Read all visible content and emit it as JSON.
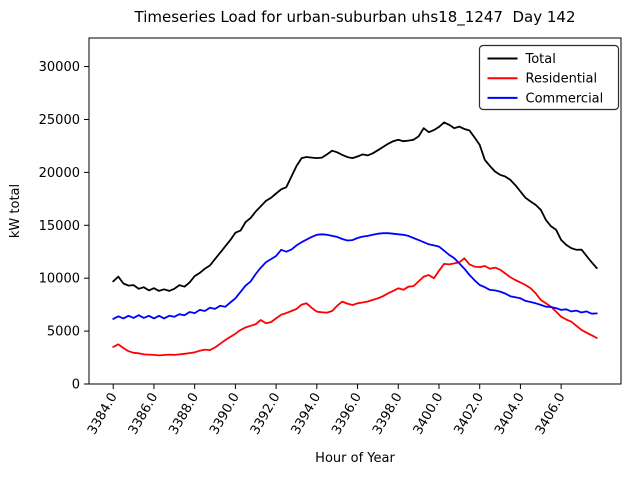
{
  "chart_data": {
    "type": "line",
    "title": "Timeseries Load for urban-suburban uhs18_1247  Day 142",
    "xlabel": "Hour of Year",
    "ylabel": "kW total",
    "xlim": [
      3382.81,
      3408.94
    ],
    "ylim": [
      0,
      32700
    ],
    "grid": false,
    "xticks": [
      3384,
      3386,
      3388,
      3390,
      3392,
      3394,
      3396,
      3398,
      3400,
      3402,
      3404,
      3406
    ],
    "xtick_labels": [
      "3384.0",
      "3386.0",
      "3388.0",
      "3390.0",
      "3392.0",
      "3394.0",
      "3396.0",
      "3398.0",
      "3400.0",
      "3402.0",
      "3404.0",
      "3406.0"
    ],
    "yticks": [
      0,
      5000,
      10000,
      15000,
      20000,
      25000,
      30000
    ],
    "ytick_labels": [
      "0",
      "5000",
      "10000",
      "15000",
      "20000",
      "25000",
      "30000"
    ],
    "x_start": 3384.0,
    "x_step": 0.25,
    "x_end": 3407.75,
    "n_points": 96,
    "legend": {
      "position": "upper right",
      "border_color": "#2b2b2b",
      "background": "#ffffff"
    },
    "series": [
      {
        "name": "Total",
        "color": "#000000",
        "values": [
          9700,
          10150,
          9500,
          9300,
          9350,
          9000,
          9150,
          8850,
          9050,
          8800,
          8950,
          8800,
          9000,
          9350,
          9200,
          9600,
          10200,
          10500,
          10900,
          11200,
          11800,
          12400,
          13000,
          13600,
          14300,
          14500,
          15300,
          15700,
          16300,
          16800,
          17300,
          17600,
          18000,
          18400,
          18600,
          19600,
          20600,
          21350,
          21450,
          21400,
          21350,
          21400,
          21700,
          22050,
          21900,
          21650,
          21440,
          21350,
          21500,
          21700,
          21600,
          21800,
          22100,
          22400,
          22700,
          22950,
          23080,
          22950,
          23000,
          23080,
          23400,
          24180,
          23800,
          24000,
          24300,
          24720,
          24500,
          24180,
          24330,
          24100,
          23960,
          23300,
          22600,
          21190,
          20600,
          20080,
          19770,
          19610,
          19300,
          18800,
          18200,
          17600,
          17250,
          16930,
          16460,
          15510,
          14900,
          14570,
          13620,
          13150,
          12840,
          12680,
          12700,
          12100,
          11500,
          10950
        ]
      },
      {
        "name": "Residential",
        "color": "#ff0000",
        "values": [
          3500,
          3750,
          3400,
          3100,
          2950,
          2900,
          2800,
          2780,
          2750,
          2700,
          2740,
          2780,
          2750,
          2800,
          2850,
          2920,
          3000,
          3150,
          3250,
          3200,
          3450,
          3800,
          4150,
          4450,
          4750,
          5100,
          5350,
          5500,
          5650,
          6050,
          5750,
          5850,
          6200,
          6550,
          6700,
          6900,
          7100,
          7500,
          7630,
          7200,
          6840,
          6780,
          6750,
          6900,
          7400,
          7790,
          7600,
          7470,
          7630,
          7700,
          7800,
          7950,
          8100,
          8300,
          8570,
          8800,
          9040,
          8900,
          9200,
          9250,
          9700,
          10150,
          10300,
          9990,
          10700,
          11350,
          11300,
          11400,
          11500,
          11880,
          11300,
          11100,
          11050,
          11150,
          10900,
          11000,
          10800,
          10450,
          10100,
          9830,
          9600,
          9360,
          9050,
          8570,
          7950,
          7630,
          7310,
          6840,
          6365,
          6100,
          5890,
          5500,
          5110,
          4850,
          4600,
          4350
        ]
      },
      {
        "name": "Commercial",
        "color": "#0000ff",
        "values": [
          6150,
          6400,
          6200,
          6450,
          6250,
          6500,
          6250,
          6450,
          6200,
          6450,
          6200,
          6450,
          6350,
          6600,
          6500,
          6800,
          6700,
          7000,
          6900,
          7200,
          7100,
          7400,
          7300,
          7700,
          8100,
          8700,
          9300,
          9700,
          10400,
          11000,
          11500,
          11800,
          12100,
          12680,
          12500,
          12700,
          13100,
          13400,
          13650,
          13900,
          14100,
          14150,
          14100,
          14000,
          13900,
          13700,
          13560,
          13600,
          13800,
          13930,
          14000,
          14100,
          14200,
          14250,
          14250,
          14200,
          14150,
          14100,
          14000,
          13800,
          13600,
          13400,
          13200,
          13100,
          12990,
          12600,
          12200,
          11880,
          11400,
          10900,
          10300,
          9800,
          9360,
          9150,
          8890,
          8850,
          8730,
          8550,
          8300,
          8200,
          8100,
          7850,
          7750,
          7630,
          7480,
          7310,
          7280,
          7160,
          7000,
          7060,
          6860,
          6940,
          6760,
          6860,
          6640,
          6670
        ]
      }
    ]
  }
}
